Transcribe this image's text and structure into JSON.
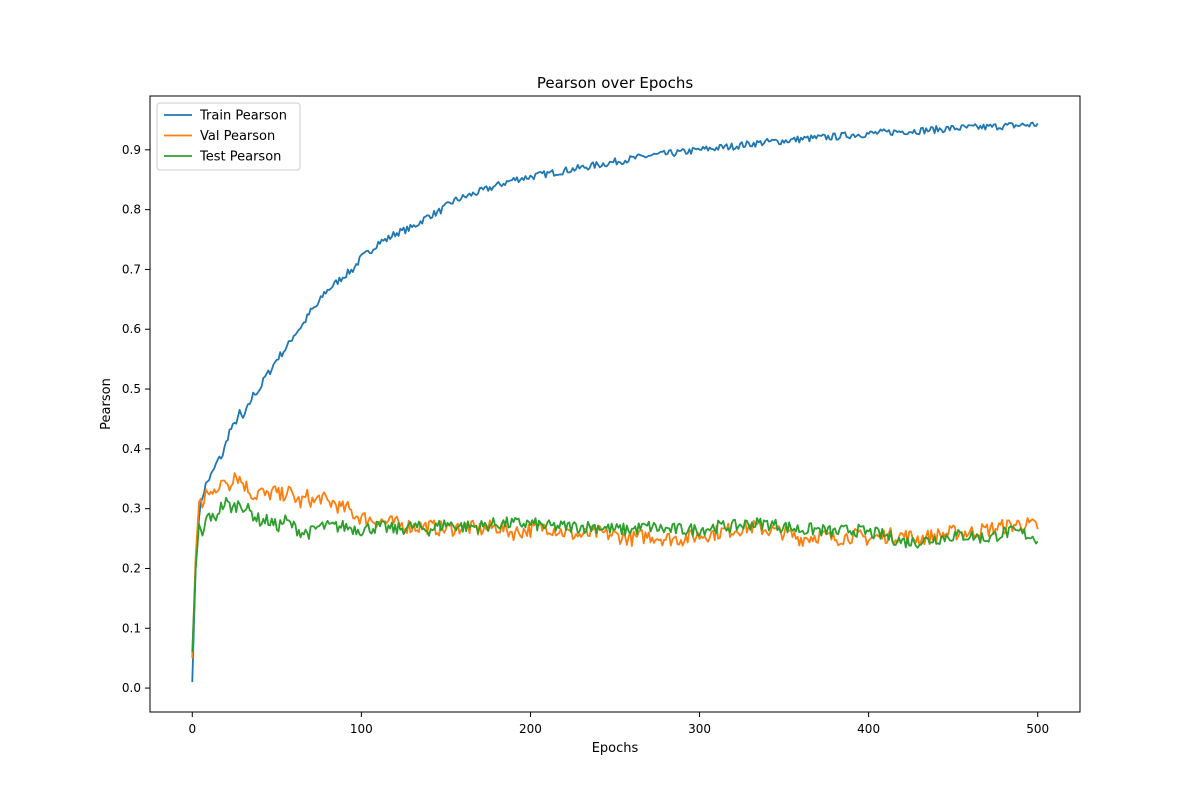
{
  "chart_data": {
    "type": "line",
    "title": "Pearson over Epochs",
    "xlabel": "Epochs",
    "ylabel": "Pearson",
    "xlim": [
      -25,
      525
    ],
    "ylim": [
      -0.04,
      0.99
    ],
    "xticks": [
      0,
      100,
      200,
      300,
      400,
      500
    ],
    "xtick_labels": [
      "0",
      "100",
      "200",
      "300",
      "400",
      "500"
    ],
    "yticks": [
      0.0,
      0.1,
      0.2,
      0.3,
      0.4,
      0.5,
      0.6,
      0.7,
      0.8,
      0.9
    ],
    "ytick_labels": [
      "0.0",
      "0.1",
      "0.2",
      "0.3",
      "0.4",
      "0.5",
      "0.6",
      "0.7",
      "0.8",
      "0.9"
    ],
    "grid": false,
    "legend": {
      "placement": "top-left"
    },
    "series": [
      {
        "name": "Train Pearson",
        "color": "#1f77b4",
        "x": [
          0,
          2,
          4,
          6,
          8,
          10,
          12,
          15,
          18,
          20,
          22,
          25,
          28,
          30,
          33,
          36,
          40,
          43,
          46,
          50,
          53,
          56,
          60,
          63,
          66,
          70,
          74,
          78,
          82,
          86,
          90,
          95,
          100,
          105,
          110,
          115,
          120,
          125,
          130,
          135,
          140,
          145,
          150,
          155,
          160,
          170,
          180,
          190,
          200,
          210,
          220,
          230,
          240,
          250,
          260,
          270,
          280,
          290,
          300,
          310,
          320,
          330,
          340,
          350,
          360,
          370,
          380,
          390,
          400,
          410,
          420,
          430,
          440,
          450,
          460,
          470,
          480,
          490,
          500
        ],
        "values": [
          0.01,
          0.2,
          0.29,
          0.32,
          0.34,
          0.35,
          0.36,
          0.38,
          0.39,
          0.41,
          0.43,
          0.44,
          0.46,
          0.45,
          0.47,
          0.49,
          0.5,
          0.52,
          0.53,
          0.55,
          0.56,
          0.57,
          0.59,
          0.6,
          0.61,
          0.63,
          0.64,
          0.66,
          0.67,
          0.68,
          0.69,
          0.7,
          0.72,
          0.73,
          0.745,
          0.75,
          0.76,
          0.765,
          0.77,
          0.78,
          0.79,
          0.795,
          0.805,
          0.815,
          0.82,
          0.83,
          0.84,
          0.85,
          0.855,
          0.86,
          0.865,
          0.87,
          0.875,
          0.88,
          0.885,
          0.89,
          0.893,
          0.896,
          0.9,
          0.903,
          0.906,
          0.91,
          0.913,
          0.915,
          0.918,
          0.92,
          0.922,
          0.925,
          0.927,
          0.929,
          0.931,
          0.932,
          0.934,
          0.936,
          0.937,
          0.938,
          0.94,
          0.941,
          0.943
        ]
      },
      {
        "name": "Val Pearson",
        "color": "#ff7f0e",
        "x": [
          0,
          2,
          4,
          6,
          8,
          10,
          13,
          16,
          19,
          22,
          25,
          28,
          31,
          34,
          37,
          40,
          44,
          48,
          52,
          56,
          60,
          64,
          68,
          72,
          76,
          80,
          84,
          88,
          92,
          96,
          100,
          110,
          120,
          130,
          140,
          150,
          160,
          170,
          180,
          190,
          200,
          210,
          220,
          230,
          240,
          250,
          260,
          270,
          280,
          290,
          300,
          310,
          320,
          330,
          340,
          350,
          360,
          370,
          380,
          390,
          400,
          410,
          420,
          430,
          440,
          450,
          460,
          470,
          480,
          490,
          500
        ],
        "values": [
          0.05,
          0.22,
          0.31,
          0.3,
          0.33,
          0.32,
          0.34,
          0.33,
          0.35,
          0.34,
          0.36,
          0.35,
          0.34,
          0.33,
          0.32,
          0.33,
          0.32,
          0.33,
          0.32,
          0.33,
          0.32,
          0.31,
          0.32,
          0.31,
          0.32,
          0.31,
          0.31,
          0.3,
          0.3,
          0.29,
          0.285,
          0.28,
          0.275,
          0.27,
          0.27,
          0.265,
          0.27,
          0.265,
          0.27,
          0.26,
          0.265,
          0.27,
          0.26,
          0.255,
          0.26,
          0.255,
          0.25,
          0.255,
          0.25,
          0.25,
          0.255,
          0.26,
          0.265,
          0.27,
          0.265,
          0.26,
          0.25,
          0.255,
          0.25,
          0.255,
          0.25,
          0.255,
          0.255,
          0.25,
          0.255,
          0.26,
          0.26,
          0.265,
          0.27,
          0.275,
          0.27
        ]
      },
      {
        "name": "Test Pearson",
        "color": "#2ca02c",
        "x": [
          0,
          2,
          4,
          6,
          8,
          10,
          13,
          16,
          20,
          24,
          28,
          32,
          36,
          40,
          45,
          50,
          55,
          60,
          65,
          70,
          75,
          80,
          90,
          100,
          110,
          120,
          130,
          140,
          150,
          160,
          170,
          180,
          190,
          200,
          210,
          220,
          230,
          240,
          250,
          260,
          270,
          280,
          290,
          300,
          310,
          320,
          330,
          340,
          350,
          360,
          370,
          380,
          390,
          400,
          410,
          420,
          430,
          440,
          450,
          460,
          470,
          480,
          490,
          500
        ],
        "values": [
          0.06,
          0.2,
          0.27,
          0.25,
          0.28,
          0.29,
          0.28,
          0.3,
          0.31,
          0.3,
          0.31,
          0.3,
          0.29,
          0.28,
          0.28,
          0.27,
          0.28,
          0.27,
          0.26,
          0.26,
          0.27,
          0.27,
          0.27,
          0.265,
          0.27,
          0.265,
          0.27,
          0.265,
          0.275,
          0.27,
          0.27,
          0.275,
          0.275,
          0.275,
          0.27,
          0.27,
          0.27,
          0.27,
          0.265,
          0.265,
          0.27,
          0.265,
          0.265,
          0.265,
          0.27,
          0.27,
          0.275,
          0.275,
          0.27,
          0.265,
          0.265,
          0.26,
          0.265,
          0.26,
          0.255,
          0.245,
          0.245,
          0.25,
          0.255,
          0.255,
          0.25,
          0.26,
          0.26,
          0.25
        ]
      }
    ]
  }
}
